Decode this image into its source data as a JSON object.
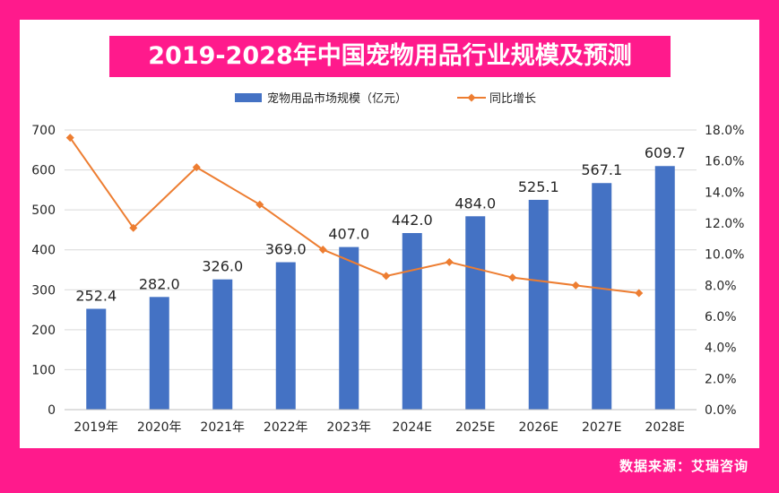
{
  "title": "2019-2028年中国宠物用品行业规模及预测",
  "source": "数据来源：艾瑞咨询",
  "colors": {
    "frame": "#ff1a8c",
    "bar": "#4472c4",
    "line": "#ed7d31",
    "grid": "#d9d9d9",
    "text": "#262626"
  },
  "chart_data": {
    "type": "bar+line",
    "title": "2019-2028年中国宠物用品行业规模及预测",
    "categories": [
      "2019年",
      "2020年",
      "2021年",
      "2022年",
      "2023年",
      "2024E",
      "2025E",
      "2026E",
      "2027E",
      "2028E"
    ],
    "series": [
      {
        "name": "宠物用品市场规模（亿元）",
        "type": "bar",
        "axis": "left",
        "values": [
          252.4,
          282.0,
          326.0,
          369.0,
          407.0,
          442.0,
          484.0,
          525.1,
          567.1,
          609.7
        ],
        "labels": [
          "252.4",
          "282.0",
          "326.0",
          "369.0",
          "407.0",
          "442.0",
          "484.0",
          "525.1",
          "567.1",
          "609.7"
        ]
      },
      {
        "name": "同比增长",
        "type": "line",
        "axis": "right",
        "values": [
          17.5,
          11.7,
          15.6,
          13.2,
          10.3,
          8.6,
          9.5,
          8.5,
          8.0,
          7.5
        ]
      }
    ],
    "y_left": {
      "min": 0,
      "max": 700,
      "step": 100,
      "ticks": [
        "0",
        "100",
        "200",
        "300",
        "400",
        "500",
        "600",
        "700"
      ]
    },
    "y_right": {
      "min": 0,
      "max": 18,
      "step": 2,
      "ticks": [
        "0.0%",
        "2.0%",
        "4.0%",
        "6.0%",
        "8.0%",
        "10.0%",
        "12.0%",
        "14.0%",
        "16.0%",
        "18.0%"
      ]
    },
    "legend_position": "top-center",
    "grid": true
  }
}
